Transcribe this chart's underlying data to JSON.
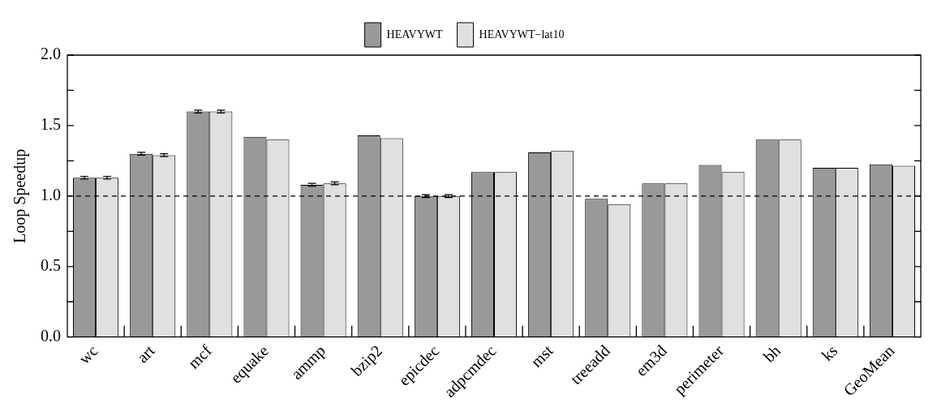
{
  "chart_data": {
    "type": "bar",
    "ylabel": "Loop Speedup",
    "categories": [
      "wc",
      "art",
      "mcf",
      "equake",
      "ammp",
      "bzip2",
      "epicdec",
      "adpcmdec",
      "mst",
      "treeadd",
      "em3d",
      "perimeter",
      "bh",
      "ks",
      "GeoMean"
    ],
    "series": [
      {
        "name": "HEAVYWT",
        "color": "#999999",
        "values": [
          1.13,
          1.3,
          1.6,
          1.42,
          1.08,
          1.43,
          1.0,
          1.17,
          1.31,
          0.98,
          1.09,
          1.22,
          1.4,
          1.2,
          1.225
        ],
        "errors": [
          0.01,
          0.01,
          0.01,
          null,
          0.01,
          null,
          0.01,
          null,
          null,
          null,
          null,
          null,
          null,
          null,
          null
        ]
      },
      {
        "name": "HEAVYWT−lat10",
        "color": "#e0e0e0",
        "values": [
          1.13,
          1.29,
          1.6,
          1.4,
          1.09,
          1.41,
          1.0,
          1.17,
          1.32,
          0.94,
          1.09,
          1.17,
          1.4,
          1.2,
          1.215
        ],
        "errors": [
          0.01,
          0.01,
          0.01,
          null,
          0.01,
          null,
          0.01,
          null,
          null,
          null,
          null,
          null,
          null,
          null,
          null
        ]
      }
    ],
    "ylim": [
      0,
      2
    ],
    "yticks": [
      {
        "value": 0,
        "label": "0.0"
      },
      {
        "value": 0.25,
        "label": null
      },
      {
        "value": 0.5,
        "label": "0.5"
      },
      {
        "value": 0.75,
        "label": null
      },
      {
        "value": 1,
        "label": "1.0"
      },
      {
        "value": 1.25,
        "label": null
      },
      {
        "value": 1.5,
        "label": "1.5"
      },
      {
        "value": 1.75,
        "label": null
      },
      {
        "value": 2,
        "label": "2.0"
      }
    ],
    "ref_lines": [
      {
        "axis": "y",
        "value": 1,
        "label": null,
        "color": "#000000",
        "line_style": "dashed"
      }
    ],
    "legend": "top",
    "grid": false
  }
}
